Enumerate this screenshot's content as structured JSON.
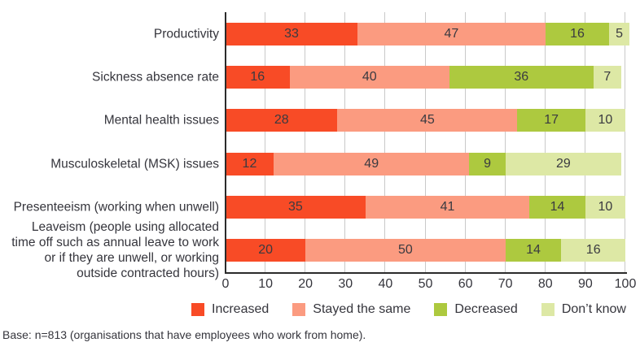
{
  "footer": {
    "base_note": "Base: n=813 (organisations that have employees who work from home)."
  },
  "colors": {
    "increased": "#f84b26",
    "stayed_the_same": "#fb9b80",
    "decreased": "#adc93f",
    "dont_know": "#dde8a5",
    "gridline": "#c9c9c9",
    "axis": "#2b2b2b",
    "text": "#35353c"
  },
  "chart_data": {
    "type": "bar",
    "orientation": "horizontal-stacked",
    "title": "",
    "xlabel": "",
    "ylabel": "",
    "xlim": [
      0,
      100
    ],
    "grid": true,
    "categories": [
      {
        "label_lines": [
          "Productivity"
        ]
      },
      {
        "label_lines": [
          "Sickness absence rate"
        ]
      },
      {
        "label_lines": [
          "Mental health issues"
        ]
      },
      {
        "label_lines": [
          "Musculoskeletal (MSK) issues"
        ]
      },
      {
        "label_lines": [
          "Presenteeism (working when unwell)"
        ]
      },
      {
        "label_lines": [
          "Leaveism (people using allocated",
          "time off such as annual leave to work",
          "or if they are unwell, or working",
          "outside contracted hours)"
        ]
      }
    ],
    "series": [
      {
        "name": "Increased",
        "key": "increased",
        "color": "#f84b26",
        "values": [
          33,
          16,
          28,
          12,
          35,
          20
        ]
      },
      {
        "name": "Stayed the same",
        "key": "stayed-the-same",
        "color": "#fb9b80",
        "values": [
          47,
          40,
          45,
          49,
          41,
          50
        ]
      },
      {
        "name": "Decreased",
        "key": "decreased",
        "color": "#adc93f",
        "values": [
          16,
          36,
          17,
          9,
          14,
          14
        ]
      },
      {
        "name": "Don’t know",
        "key": "dont-know",
        "color": "#dde8a5",
        "values": [
          5,
          7,
          10,
          29,
          10,
          16
        ]
      }
    ],
    "x_ticks": [
      "0",
      "10",
      "20",
      "30",
      "40",
      "50",
      "60",
      "70",
      "80",
      "90",
      "100"
    ],
    "legend": {
      "position": "bottom",
      "entries": [
        "Increased",
        "Stayed the same",
        "Decreased",
        "Don’t know"
      ]
    }
  }
}
